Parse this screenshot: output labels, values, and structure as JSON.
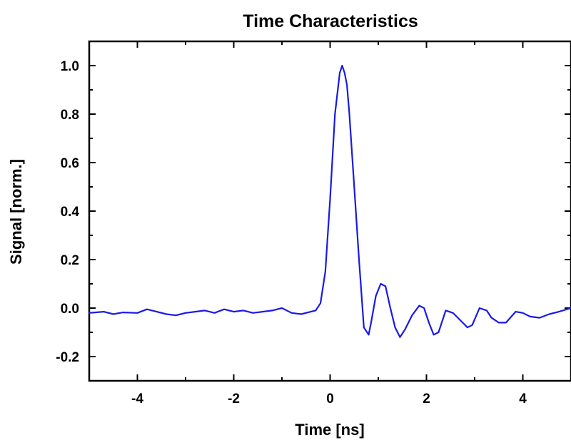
{
  "chart_data": {
    "type": "line",
    "title": "Time Characteristics",
    "xlabel": "Time [ns]",
    "ylabel": "Signal [norm.]",
    "xlim": [
      -5,
      5
    ],
    "ylim": [
      -0.3,
      1.1
    ],
    "xticks": [
      -4,
      -2,
      0,
      2,
      4
    ],
    "xtick_labels": [
      "-4",
      "-2",
      "0",
      "2",
      "4"
    ],
    "yticks": [
      -0.2,
      0.0,
      0.2,
      0.4,
      0.6,
      0.8,
      1.0
    ],
    "ytick_labels": [
      "-0.2",
      "0.0",
      "0.2",
      "0.4",
      "0.6",
      "0.8",
      "1.0"
    ],
    "grid": false,
    "legend": "none",
    "series": [
      {
        "color": "#1a1ae6",
        "x": [
          -5.0,
          -4.7,
          -4.5,
          -4.3,
          -4.0,
          -3.8,
          -3.6,
          -3.4,
          -3.2,
          -3.0,
          -2.8,
          -2.6,
          -2.4,
          -2.2,
          -2.0,
          -1.8,
          -1.6,
          -1.4,
          -1.2,
          -1.0,
          -0.8,
          -0.6,
          -0.4,
          -0.3,
          -0.2,
          -0.1,
          0.0,
          0.1,
          0.2,
          0.25,
          0.3,
          0.35,
          0.4,
          0.5,
          0.6,
          0.7,
          0.8,
          0.85,
          0.95,
          1.05,
          1.15,
          1.25,
          1.35,
          1.45,
          1.55,
          1.7,
          1.85,
          1.95,
          2.05,
          2.15,
          2.25,
          2.4,
          2.55,
          2.7,
          2.85,
          2.95,
          3.1,
          3.25,
          3.35,
          3.5,
          3.65,
          3.85,
          4.0,
          4.15,
          4.35,
          4.55,
          4.75,
          5.0
        ],
        "y": [
          -0.02,
          -0.015,
          -0.025,
          -0.018,
          -0.02,
          -0.005,
          -0.015,
          -0.025,
          -0.03,
          -0.02,
          -0.015,
          -0.01,
          -0.02,
          -0.005,
          -0.015,
          -0.01,
          -0.02,
          -0.015,
          -0.01,
          0.0,
          -0.02,
          -0.025,
          -0.015,
          -0.01,
          0.02,
          0.15,
          0.45,
          0.8,
          0.97,
          1.0,
          0.97,
          0.92,
          0.8,
          0.5,
          0.2,
          -0.08,
          -0.11,
          -0.06,
          0.05,
          0.1,
          0.09,
          0.0,
          -0.08,
          -0.12,
          -0.09,
          -0.03,
          0.01,
          0.0,
          -0.06,
          -0.11,
          -0.1,
          -0.01,
          -0.02,
          -0.05,
          -0.08,
          -0.07,
          0.0,
          -0.01,
          -0.04,
          -0.06,
          -0.06,
          -0.015,
          -0.02,
          -0.035,
          -0.04,
          -0.025,
          -0.015,
          0.0
        ]
      }
    ]
  }
}
